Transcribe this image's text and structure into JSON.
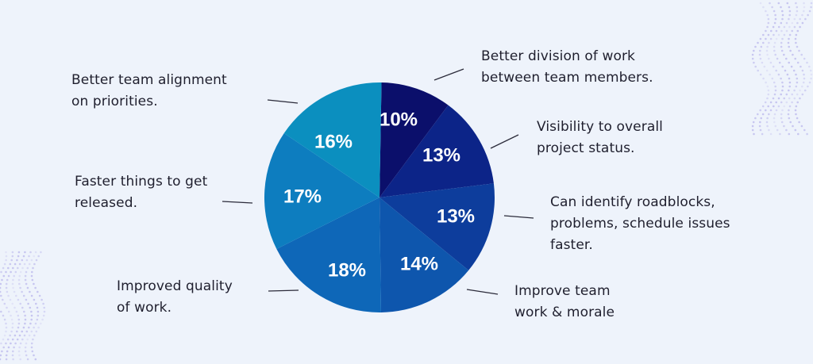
{
  "chart_data": {
    "type": "pie",
    "title": "",
    "slices": [
      {
        "value": 10,
        "label": "10%",
        "color": "#0b0f6b",
        "desc": [
          "Better division of work",
          "between team members."
        ]
      },
      {
        "value": 13,
        "label": "13%",
        "color": "#0c2488",
        "desc": [
          "Visibility to overall",
          "project status."
        ]
      },
      {
        "value": 13,
        "label": "13%",
        "color": "#0d3d9c",
        "desc": [
          "Can identify roadblocks,",
          "problems, schedule issues",
          "faster."
        ]
      },
      {
        "value": 14,
        "label": "14%",
        "color": "#0e56ad",
        "desc": [
          "Improve team",
          "work & morale"
        ]
      },
      {
        "value": 18,
        "label": "18%",
        "color": "#0e67b8",
        "desc": [
          "Improved quality",
          "of work."
        ]
      },
      {
        "value": 17,
        "label": "17%",
        "color": "#0d7dbf",
        "desc": [
          "Faster things to get",
          "released."
        ]
      },
      {
        "value": 16,
        "label": "16%",
        "color": "#0b8fbf",
        "desc": [
          "Better team alignment",
          "on priorities."
        ]
      }
    ]
  }
}
